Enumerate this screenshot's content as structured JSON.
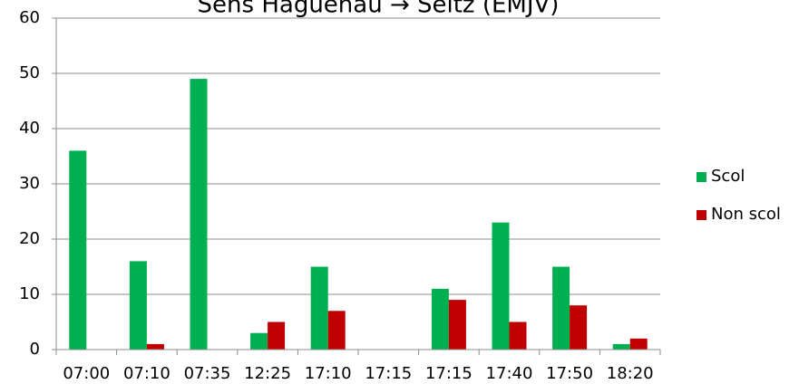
{
  "chart_data": {
    "type": "bar",
    "title": "Sens Haguenau → Seltz (EMJV)",
    "categories": [
      "07:00",
      "07:10",
      "07:35",
      "12:25",
      "17:10",
      "17:15",
      "17:15",
      "17:40",
      "17:50",
      "18:20"
    ],
    "series": [
      {
        "name": "Scol",
        "color": "#00b050",
        "values": [
          36,
          16,
          49,
          3,
          15,
          0,
          11,
          23,
          15,
          1
        ]
      },
      {
        "name": "Non scol",
        "color": "#c00000",
        "values": [
          0,
          1,
          0,
          5,
          7,
          0,
          9,
          5,
          8,
          2
        ]
      }
    ],
    "ylim": [
      0,
      60
    ],
    "yticks": [
      0,
      10,
      20,
      30,
      40,
      50,
      60
    ],
    "grid": true,
    "legend": "right"
  }
}
